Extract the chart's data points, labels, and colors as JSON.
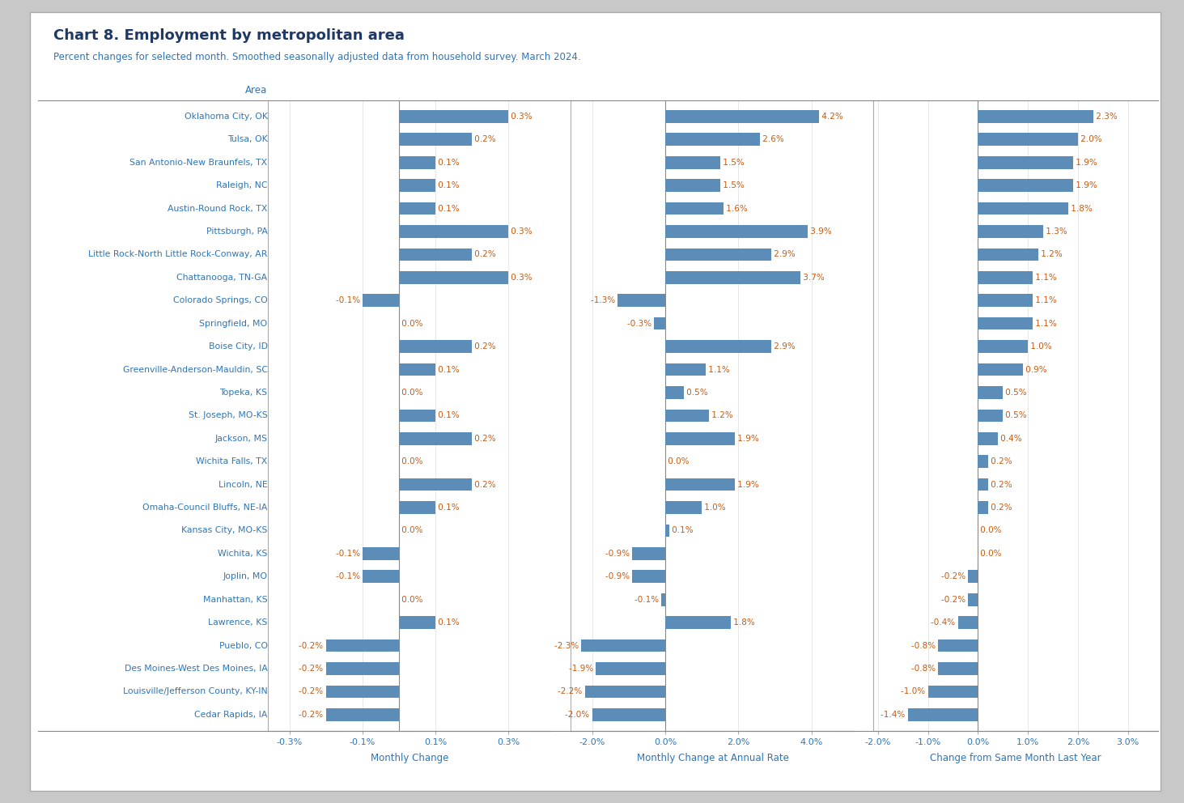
{
  "title": "Chart 8. Employment by metropolitan area",
  "subtitle": "Percent changes for selected month. Smoothed seasonally adjusted data from household survey. March 2024.",
  "areas": [
    "Oklahoma City, OK",
    "Tulsa, OK",
    "San Antonio-New Braunfels, TX",
    "Raleigh, NC",
    "Austin-Round Rock, TX",
    "Pittsburgh, PA",
    "Little Rock-North Little Rock-Conway, AR",
    "Chattanooga, TN-GA",
    "Colorado Springs, CO",
    "Springfield, MO",
    "Boise City, ID",
    "Greenville-Anderson-Mauldin, SC",
    "Topeka, KS",
    "St. Joseph, MO-KS",
    "Jackson, MS",
    "Wichita Falls, TX",
    "Lincoln, NE",
    "Omaha-Council Bluffs, NE-IA",
    "Kansas City, MO-KS",
    "Wichita, KS",
    "Joplin, MO",
    "Manhattan, KS",
    "Lawrence, KS",
    "Pueblo, CO",
    "Des Moines-West Des Moines, IA",
    "Louisville/Jefferson County, KY-IN",
    "Cedar Rapids, IA"
  ],
  "monthly": [
    0.3,
    0.2,
    0.1,
    0.1,
    0.1,
    0.3,
    0.2,
    0.3,
    -0.1,
    0.0,
    0.2,
    0.1,
    0.0,
    0.1,
    0.2,
    0.0,
    0.2,
    0.1,
    0.0,
    -0.1,
    -0.1,
    0.0,
    0.1,
    -0.2,
    -0.2,
    -0.2,
    -0.2
  ],
  "annual_rate": [
    4.2,
    2.6,
    1.5,
    1.5,
    1.6,
    3.9,
    2.9,
    3.7,
    -1.3,
    -0.3,
    2.9,
    1.1,
    0.5,
    1.2,
    1.9,
    0.0,
    1.9,
    1.0,
    0.1,
    -0.9,
    -0.9,
    -0.1,
    1.8,
    -2.3,
    -1.9,
    -2.2,
    -2.0
  ],
  "yoy": [
    2.3,
    2.0,
    1.9,
    1.9,
    1.8,
    1.3,
    1.2,
    1.1,
    1.1,
    1.1,
    1.0,
    0.9,
    0.5,
    0.5,
    0.4,
    0.2,
    0.2,
    0.2,
    0.0,
    0.0,
    -0.2,
    -0.2,
    -0.4,
    -0.8,
    -0.8,
    -1.0,
    -1.4
  ],
  "bar_color": "#5b8db8",
  "panel_bg": "#ffffff",
  "outer_bg": "#c8c8c8",
  "title_color": "#1f3864",
  "subtitle_color": "#2e75b6",
  "label_color": "#2e75b6",
  "value_color": "#c55a11",
  "axis_label_color": "#2e75b6",
  "monthly_xlim": [
    -0.36,
    0.42
  ],
  "annual_xlim": [
    -2.6,
    5.2
  ],
  "yoy_xlim": [
    -2.1,
    3.6
  ],
  "monthly_xticks": [
    -0.3,
    -0.1,
    0.1,
    0.3
  ],
  "annual_xticks": [
    -2.0,
    0.0,
    2.0,
    4.0
  ],
  "yoy_xticks": [
    -2.0,
    -1.0,
    0.0,
    1.0,
    2.0,
    3.0
  ],
  "xlabel1": "Monthly Change",
  "xlabel2": "Monthly Change at Annual Rate",
  "xlabel3": "Change from Same Month Last Year"
}
